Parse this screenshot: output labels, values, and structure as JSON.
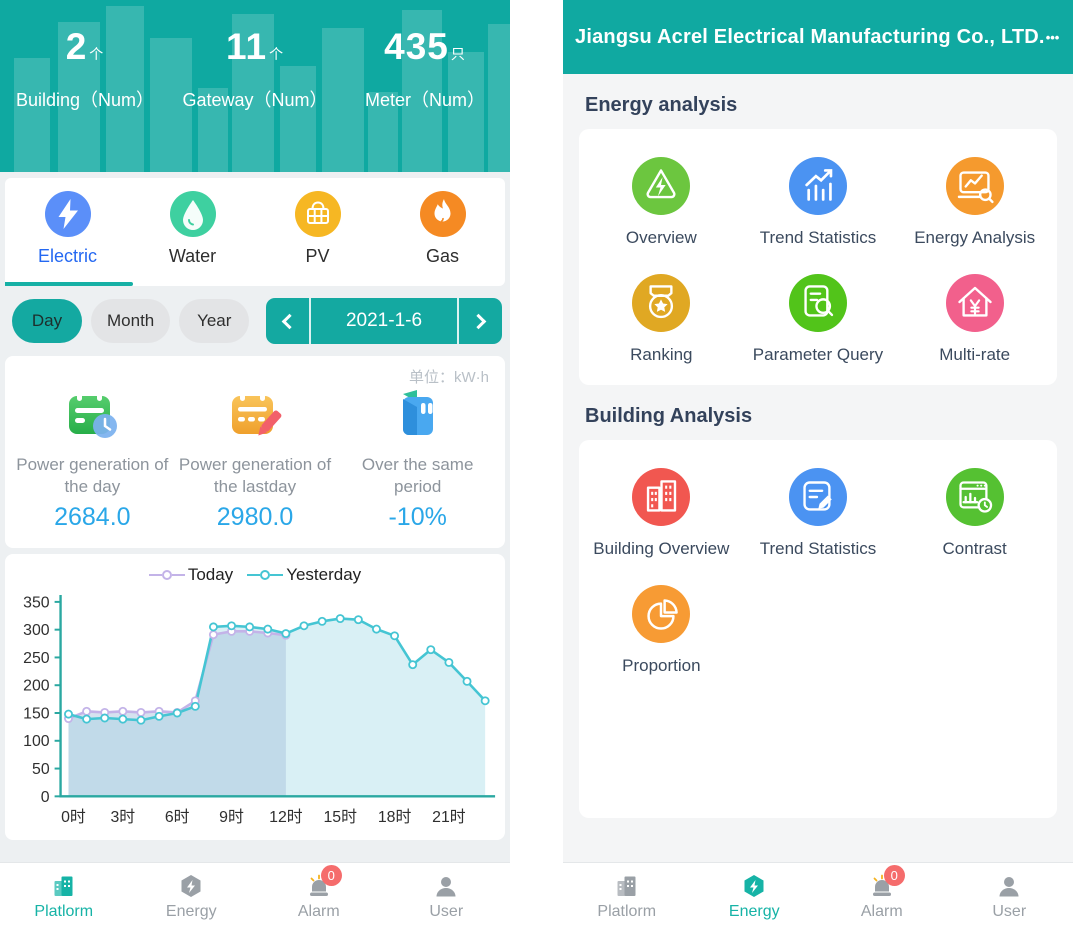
{
  "colors": {
    "primary_teal": "#10a9a1",
    "active_tab_blue": "#2468f2",
    "value_blue": "#2aa7e8",
    "badge_red": "#f56c6c",
    "section_heading": "#33425b"
  },
  "left_screen": {
    "header_stats": [
      {
        "value": "2",
        "unit": "个",
        "label": "Building（Num）"
      },
      {
        "value": "11",
        "unit": "个",
        "label": "Gateway（Num）"
      },
      {
        "value": "435",
        "unit": "只",
        "label": "Meter（Num）"
      }
    ],
    "tabs": [
      {
        "label": "Electric",
        "icon": "lightning-icon",
        "color": "#5b8ff9",
        "active": true
      },
      {
        "label": "Water",
        "icon": "water-drop-icon",
        "color": "#3ed0a0",
        "active": false
      },
      {
        "label": "PV",
        "icon": "solar-panel-icon",
        "color": "#f6b723",
        "active": false
      },
      {
        "label": "Gas",
        "icon": "flame-icon",
        "color": "#f58a23",
        "active": false
      }
    ],
    "period": {
      "options": [
        "Day",
        "Month",
        "Year"
      ],
      "selected": "Day",
      "date": "2021-1-6"
    },
    "summary": {
      "unit_label": "单位：kW·h",
      "items": [
        {
          "icon": "calendar-clock-icon",
          "label": "Power generation of the day",
          "value": "2684.0"
        },
        {
          "icon": "calendar-pencil-icon",
          "label": "Power generation of the lastday",
          "value": "2980.0"
        },
        {
          "icon": "ledger-book-icon",
          "label": "Over the same period",
          "value": "-10%"
        }
      ]
    }
  },
  "right_screen": {
    "header": {
      "title": "Jiangsu Acrel Electrical Manufacturing Co., LTD.",
      "menu_dots": "•••"
    },
    "sections": [
      {
        "heading": "Energy analysis",
        "apps": [
          {
            "label": "Overview",
            "icon": "recycle-energy-icon",
            "color": "#6cc63f"
          },
          {
            "label": "Trend Statistics",
            "icon": "bar-trend-icon",
            "color": "#4b93f2"
          },
          {
            "label": "Energy Analysis",
            "icon": "monitor-search-icon",
            "color": "#f59a2e"
          },
          {
            "label": "Ranking",
            "icon": "medal-star-icon",
            "color": "#e0a823"
          },
          {
            "label": "Parameter Query",
            "icon": "document-search-icon",
            "color": "#52c41a"
          },
          {
            "label": "Multi-rate",
            "icon": "house-yen-icon",
            "color": "#f2608c"
          }
        ]
      },
      {
        "heading": "Building Analysis",
        "apps": [
          {
            "label": "Building Overview",
            "icon": "buildings-icon",
            "color": "#f15750"
          },
          {
            "label": "Trend Statistics",
            "icon": "document-pencil-icon",
            "color": "#4b93f2"
          },
          {
            "label": "Contrast",
            "icon": "report-clock-icon",
            "color": "#55c132"
          },
          {
            "label": "Proportion",
            "icon": "pie-chart-icon",
            "color": "#f79b34"
          }
        ]
      }
    ]
  },
  "nav": {
    "platform": "Platlorm",
    "energy": "Energy",
    "alarm": "Alarm",
    "alarm_badge": "0",
    "user": "User"
  },
  "chart_data": {
    "type": "area",
    "title": "",
    "xlabel": "",
    "ylabel": "",
    "ylim": [
      0,
      350
    ],
    "ytick_step": 50,
    "x_max": 23,
    "x_labels": [
      "0时",
      "3时",
      "6时",
      "9时",
      "12时",
      "15时",
      "18时",
      "21时"
    ],
    "x_label_hours": [
      0,
      3,
      6,
      9,
      12,
      15,
      18,
      21
    ],
    "axis_color": "#2aa8a1",
    "legend_position": "top",
    "series": [
      {
        "name": "Today",
        "color": "#c3b3e8",
        "fill": "rgba(165,190,220,0.45)",
        "values": [
          140,
          153,
          151,
          153,
          151,
          153,
          151,
          172,
          291,
          297,
          297,
          294,
          290
        ]
      },
      {
        "name": "Yesterday",
        "color": "#45c5d3",
        "fill": "rgba(186,228,236,0.55)",
        "values": [
          148,
          139,
          141,
          139,
          137,
          144,
          150,
          162,
          305,
          307,
          305,
          301,
          293,
          307,
          315,
          320,
          318,
          301,
          289,
          237,
          264,
          241,
          207,
          172
        ]
      }
    ]
  }
}
